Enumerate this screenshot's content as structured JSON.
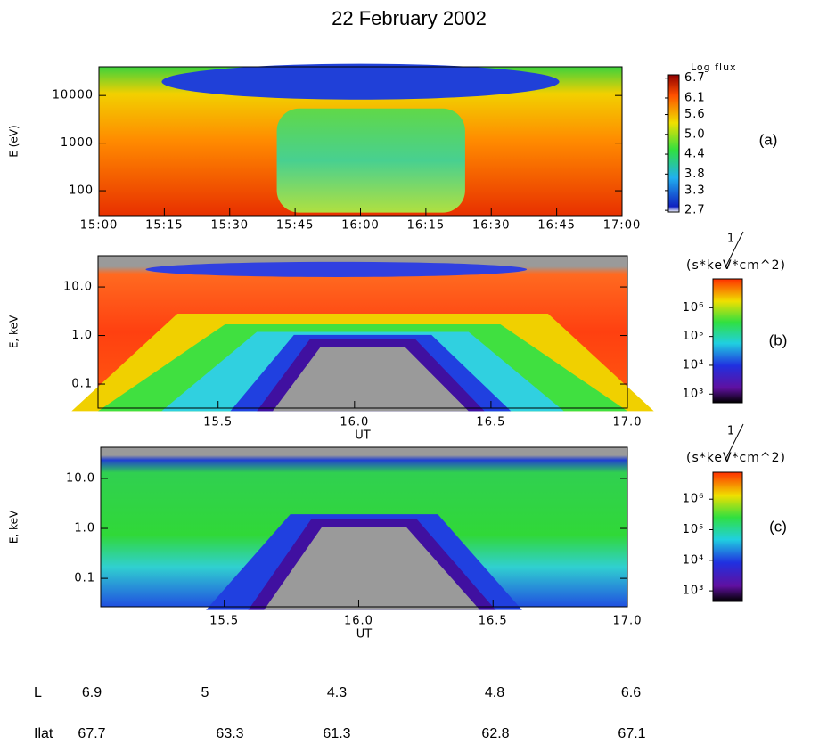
{
  "title": "22 February 2002",
  "chart_data": [
    {
      "type": "heatmap",
      "panel_label": "(a)",
      "ylabel": "E (eV)",
      "yscale": "log",
      "ylim": [
        30,
        40000
      ],
      "yticks": [
        100,
        1000,
        10000
      ],
      "xlim": [
        15,
        17
      ],
      "xticks": [
        {
          "value": 15,
          "label": "15:00"
        },
        {
          "value": 15.25,
          "label": "15:15"
        },
        {
          "value": 15.5,
          "label": "15:30"
        },
        {
          "value": 15.75,
          "label": "15:45"
        },
        {
          "value": 16,
          "label": "16:00"
        },
        {
          "value": 16.25,
          "label": "16:15"
        },
        {
          "value": 16.5,
          "label": "16:30"
        },
        {
          "value": 16.75,
          "label": "16:45"
        },
        {
          "value": 17,
          "label": "17:00"
        }
      ],
      "colorbar": {
        "title": "Log flux",
        "scale": "linear",
        "lim": [
          2.65,
          6.8
        ],
        "ticks": [
          6.7,
          6.1,
          5.6,
          {
            "value": 5,
            "label": "5.0"
          },
          4.4,
          3.8,
          3.3,
          2.7
        ]
      }
    },
    {
      "type": "heatmap",
      "panel_label": "(b)",
      "ylabel": "E, keV",
      "xlabel": "UT",
      "yscale": "log",
      "ylim": [
        0.032,
        44
      ],
      "yticks": [
        0.1,
        {
          "value": 1,
          "label": "1.0"
        },
        {
          "value": 10,
          "label": "10.0"
        }
      ],
      "xlim": [
        15.06,
        17
      ],
      "xticks": [
        15.5,
        {
          "value": 16,
          "label": "16.0"
        },
        16.5,
        {
          "value": 17,
          "label": "17.0"
        }
      ],
      "colorbar": {
        "numerator": "1",
        "denominator": "(s*keV*cm^2)",
        "scale": "log",
        "lim": [
          500,
          10000000
        ],
        "ticks": [
          {
            "value": 1000,
            "label": "10³"
          },
          {
            "value": 10000,
            "label": "10⁴"
          },
          {
            "value": 100000,
            "label": "10⁵"
          },
          {
            "value": 1000000,
            "label": "10⁶"
          }
        ]
      }
    },
    {
      "type": "heatmap",
      "panel_label": "(c)",
      "ylabel": "E, keV",
      "xlabel": "UT",
      "yscale": "log",
      "ylim": [
        0.027,
        42
      ],
      "yticks": [
        0.1,
        {
          "value": 1,
          "label": "1.0"
        },
        {
          "value": 10,
          "label": "10.0"
        }
      ],
      "xlim": [
        15.04,
        17
      ],
      "xticks": [
        15.5,
        {
          "value": 16,
          "label": "16.0"
        },
        16.5,
        {
          "value": 17,
          "label": "17.0"
        }
      ],
      "colorbar": {
        "numerator": "1",
        "denominator": "(s*keV*cm^2)",
        "scale": "log",
        "lim": [
          450,
          7600000
        ],
        "ticks": [
          {
            "value": 1000,
            "label": "10³"
          },
          {
            "value": 10000,
            "label": "10⁴"
          },
          {
            "value": 100000,
            "label": "10⁵"
          },
          {
            "value": 1000000,
            "label": "10⁶"
          }
        ]
      }
    }
  ],
  "table": {
    "rows": [
      {
        "name": "L",
        "values": [
          6.9,
          5,
          4.3,
          4.8,
          6.6
        ]
      },
      {
        "name": "Ilat",
        "values": [
          67.7,
          63.3,
          61.3,
          62.8,
          67.1
        ]
      }
    ]
  }
}
